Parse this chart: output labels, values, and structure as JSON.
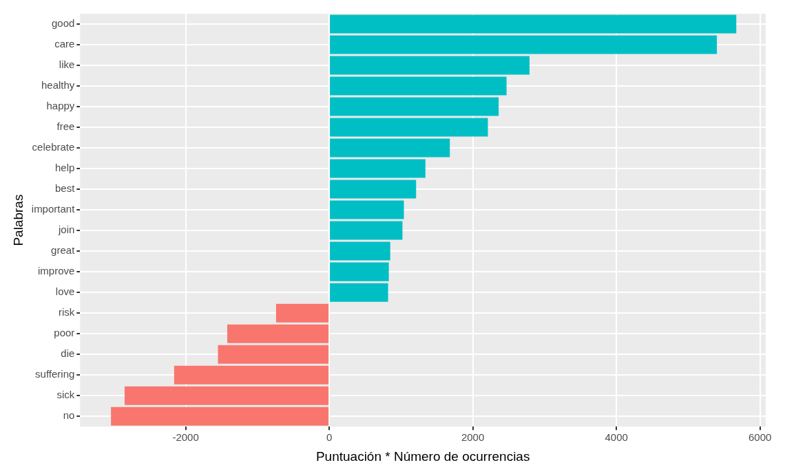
{
  "chart_data": {
    "type": "bar",
    "orientation": "horizontal",
    "xlabel": "Puntuación * Número de ocurrencias",
    "ylabel": "Palabras",
    "categories": [
      "good",
      "care",
      "like",
      "healthy",
      "happy",
      "free",
      "celebrate",
      "help",
      "best",
      "important",
      "join",
      "great",
      "improve",
      "love",
      "risk",
      "poor",
      "die",
      "suffering",
      "sick",
      "no"
    ],
    "values": [
      5670,
      5400,
      2790,
      2470,
      2360,
      2210,
      1680,
      1340,
      1210,
      1040,
      1020,
      850,
      830,
      820,
      -740,
      -1420,
      -1550,
      -2160,
      -2850,
      -3040
    ],
    "colors": [
      "#00bfc4",
      "#00bfc4",
      "#00bfc4",
      "#00bfc4",
      "#00bfc4",
      "#00bfc4",
      "#00bfc4",
      "#00bfc4",
      "#00bfc4",
      "#00bfc4",
      "#00bfc4",
      "#00bfc4",
      "#00bfc4",
      "#00bfc4",
      "#f8766d",
      "#f8766d",
      "#f8766d",
      "#f8766d",
      "#f8766d",
      "#f8766d"
    ],
    "xlim": [
      -3470,
      6080
    ],
    "xticks": [
      -2000,
      0,
      2000,
      4000,
      6000
    ],
    "grid": true,
    "legend": false
  }
}
